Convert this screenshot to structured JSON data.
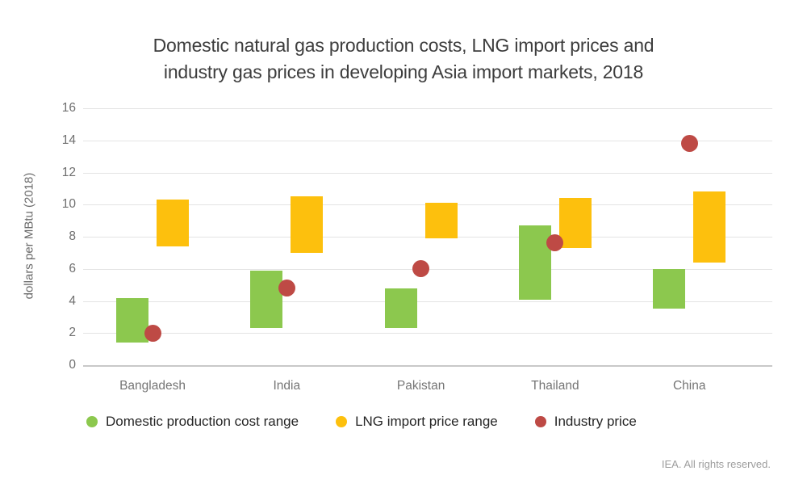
{
  "title": {
    "full": "Domestic natural gas production costs, LNG import prices and industry gas prices in developing Asia import markets, 2018",
    "lines": [
      "Domestic natural gas production costs, LNG import prices and",
      "industry gas prices in developing Asia import markets, 2018"
    ]
  },
  "footer": "IEA. All rights reserved.",
  "chart_data": {
    "type": "bar",
    "subtype": "floating-range-bars-with-points",
    "title": "Domestic natural gas production costs, LNG import prices and industry gas prices in developing Asia import markets, 2018",
    "xlabel": "",
    "ylabel": "dollars per MBtu (2018)",
    "ylim": [
      0,
      16
    ],
    "yticks": [
      0,
      2,
      4,
      6,
      8,
      10,
      12,
      14,
      16
    ],
    "grid": true,
    "legend_position": "bottom",
    "categories": [
      "Bangladesh",
      "India",
      "Pakistan",
      "Thailand",
      "China"
    ],
    "series": [
      {
        "name": "Domestic production cost range",
        "type": "range-bar",
        "color": "#8CC84E",
        "ranges": [
          [
            1.4,
            4.2
          ],
          [
            2.3,
            5.9
          ],
          [
            2.3,
            4.8
          ],
          [
            4.1,
            8.7
          ],
          [
            3.5,
            6.0
          ]
        ]
      },
      {
        "name": "LNG import price range",
        "type": "range-bar",
        "color": "#FDC00D",
        "ranges": [
          [
            7.4,
            10.3
          ],
          [
            7.0,
            10.5
          ],
          [
            7.9,
            10.1
          ],
          [
            7.3,
            10.4
          ],
          [
            6.4,
            10.8
          ]
        ]
      },
      {
        "name": "Industry price",
        "type": "point",
        "color": "#BE4A45",
        "values": [
          2.0,
          4.8,
          6.0,
          7.6,
          13.8
        ]
      }
    ]
  },
  "style": {
    "gridline_color": "#e4e4e4",
    "axis_line_color": "#c9c9c9",
    "title_color": "#3d3d3d",
    "tick_label_color": "#6f6f6f",
    "category_label_color": "#757575",
    "legend_text_color": "#262626",
    "footer_color": "#9d9d9d"
  }
}
